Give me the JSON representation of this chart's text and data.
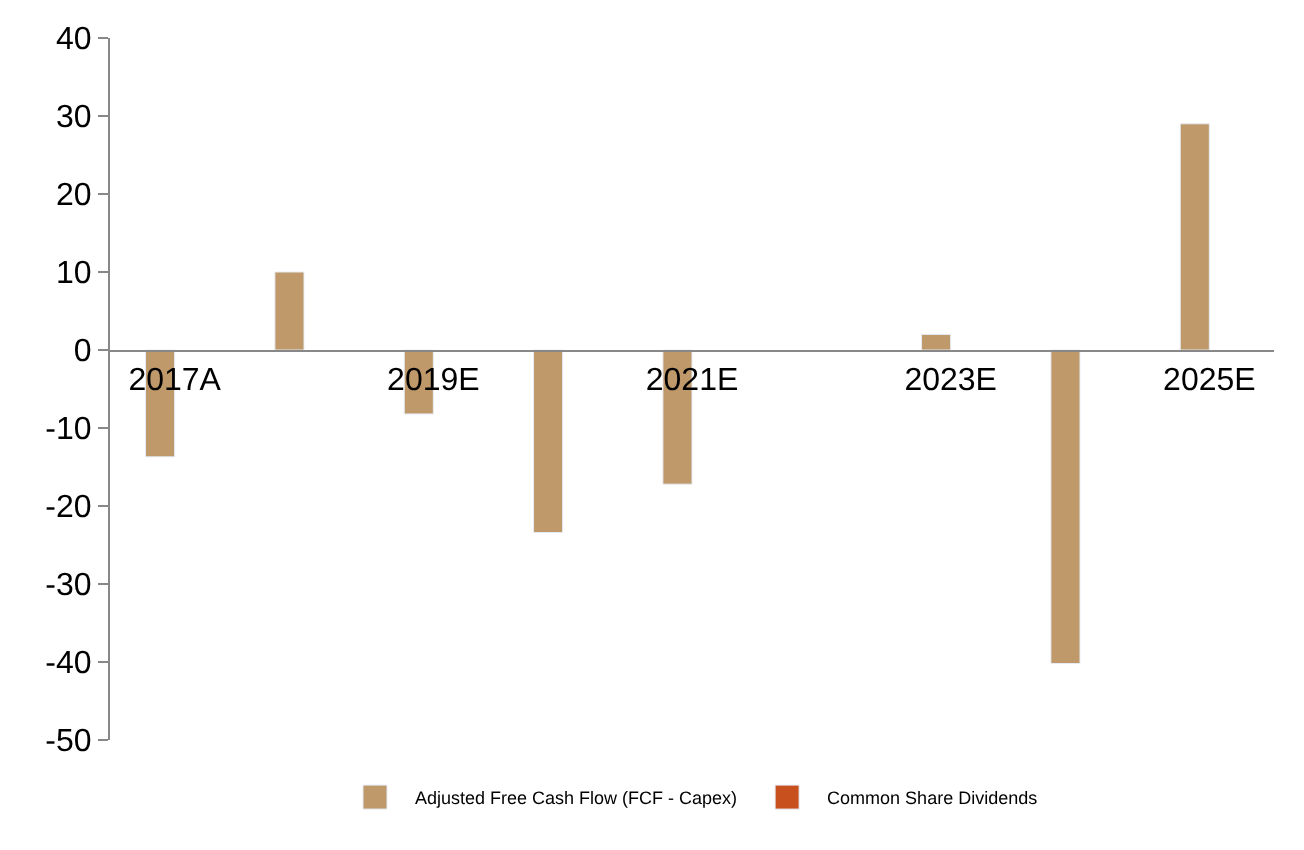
{
  "chart_data": {
    "type": "bar",
    "categories": [
      "2017A",
      null,
      "2019E",
      null,
      "2021E",
      null,
      "2023E",
      null,
      "2025E"
    ],
    "series": [
      {
        "name": "Adjusted Free Cash Flow (FCF - Capex)",
        "color": "#c0996a",
        "values": [
          -13.7,
          10,
          -8.2,
          -23.4,
          -17.2,
          null,
          2,
          -40.2,
          29
        ]
      },
      {
        "name": "Common Share Dividends",
        "color": "#c8501e",
        "values": [
          null,
          null,
          null,
          null,
          null,
          null,
          null,
          null,
          null
        ]
      }
    ],
    "ylim": [
      -50,
      40
    ],
    "yticks": [
      -50,
      -40,
      -30,
      -20,
      -10,
      0,
      10,
      20,
      30,
      40
    ],
    "legend": "bottom"
  }
}
